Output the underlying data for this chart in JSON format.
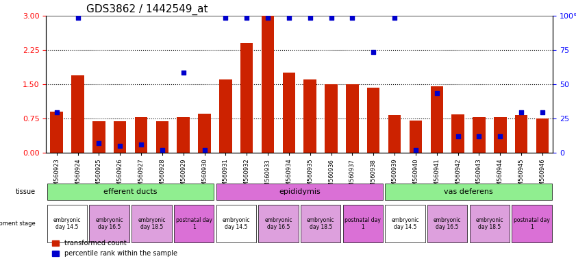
{
  "title": "GDS3862 / 1442549_at",
  "samples": [
    "GSM560923",
    "GSM560924",
    "GSM560925",
    "GSM560926",
    "GSM560927",
    "GSM560928",
    "GSM560929",
    "GSM560930",
    "GSM560931",
    "GSM560932",
    "GSM560933",
    "GSM560934",
    "GSM560935",
    "GSM560936",
    "GSM560937",
    "GSM560938",
    "GSM560939",
    "GSM560940",
    "GSM560941",
    "GSM560942",
    "GSM560943",
    "GSM560944",
    "GSM560945",
    "GSM560946"
  ],
  "red_values": [
    0.9,
    1.7,
    0.68,
    0.68,
    0.78,
    0.68,
    0.78,
    0.85,
    1.6,
    2.4,
    3.0,
    1.75,
    1.6,
    1.5,
    1.5,
    1.43,
    0.82,
    0.7,
    1.45,
    0.83,
    0.78,
    0.78,
    0.82,
    0.75
  ],
  "blue_values": [
    0.88,
    2.95,
    0.2,
    0.15,
    0.18,
    0.05,
    1.75,
    0.05,
    2.95,
    2.95,
    2.95,
    2.95,
    2.95,
    2.95,
    2.95,
    2.2,
    2.95,
    0.05,
    1.3,
    0.35,
    0.35,
    0.35,
    0.88,
    0.88
  ],
  "ylim_left": [
    0,
    3.0
  ],
  "ylim_right": [
    0,
    100
  ],
  "yticks_left": [
    0,
    0.75,
    1.5,
    2.25,
    3.0
  ],
  "yticks_right": [
    0,
    25,
    50,
    75,
    100
  ],
  "tissue_groups": [
    {
      "label": "efferent ducts",
      "start": 0,
      "end": 7,
      "color": "#90EE90"
    },
    {
      "label": "epididymis",
      "start": 8,
      "end": 15,
      "color": "#DA70D6"
    },
    {
      "label": "vas deferens",
      "start": 16,
      "end": 23,
      "color": "#90EE90"
    }
  ],
  "dev_stage_groups": [
    {
      "label": "embryonic\nday 14.5",
      "start": 0,
      "end": 1,
      "color": "#ffffff"
    },
    {
      "label": "embryonic\nday 16.5",
      "start": 2,
      "end": 3,
      "color": "#DDA0DD"
    },
    {
      "label": "embryonic\nday 18.5",
      "start": 4,
      "end": 5,
      "color": "#DDA0DD"
    },
    {
      "label": "postnatal day\n1",
      "start": 6,
      "end": 7,
      "color": "#DA70D6"
    },
    {
      "label": "embryonic\nday 14.5",
      "start": 8,
      "end": 9,
      "color": "#ffffff"
    },
    {
      "label": "embryonic\nday 16.5",
      "start": 10,
      "end": 11,
      "color": "#DDA0DD"
    },
    {
      "label": "embryonic\nday 18.5",
      "start": 12,
      "end": 13,
      "color": "#DDA0DD"
    },
    {
      "label": "postnatal day\n1",
      "start": 14,
      "end": 15,
      "color": "#DA70D6"
    },
    {
      "label": "embryonic\nday 14.5",
      "start": 16,
      "end": 17,
      "color": "#ffffff"
    },
    {
      "label": "embryonic\nday 16.5",
      "start": 18,
      "end": 19,
      "color": "#DDA0DD"
    },
    {
      "label": "embryonic\nday 18.5",
      "start": 20,
      "end": 21,
      "color": "#DDA0DD"
    },
    {
      "label": "postnatal day\n1",
      "start": 22,
      "end": 23,
      "color": "#DA70D6"
    }
  ],
  "bar_color": "#CC2200",
  "dot_color": "#0000CC",
  "bg_color": "#ffffff",
  "grid_color": "#000000",
  "legend_red": "transformed count",
  "legend_blue": "percentile rank within the sample"
}
